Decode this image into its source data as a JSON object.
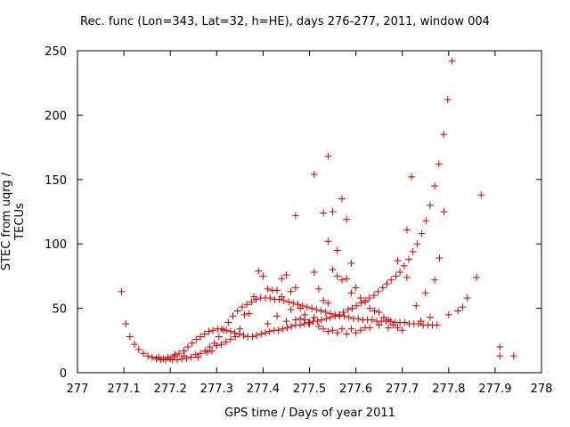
{
  "chart_data": {
    "type": "scatter",
    "title": "Rec. func (Lon=343, Lat=32, h=HE), days 276-277, 2011, window 004",
    "xlabel": "GPS time / Days of year 2011",
    "ylabel": "STEC from uqrg / TECUs",
    "xlim": [
      277,
      278
    ],
    "ylim": [
      0,
      250
    ],
    "x_ticks": [
      "277",
      "277.1",
      "277.2",
      "277.3",
      "277.4",
      "277.5",
      "277.6",
      "277.7",
      "277.8",
      "277.9",
      "278"
    ],
    "y_ticks": [
      "0",
      "50",
      "100",
      "150",
      "200",
      "250"
    ],
    "grid": false,
    "legend": "none",
    "marker": "+",
    "color": "#cc0000",
    "series": [
      {
        "points": [
          [
            277.095,
            63
          ],
          [
            277.104,
            38
          ],
          [
            277.113,
            28
          ],
          [
            277.123,
            22
          ],
          [
            277.132,
            18
          ],
          [
            277.142,
            15
          ],
          [
            277.152,
            13
          ],
          [
            277.161,
            12
          ],
          [
            277.17,
            11
          ],
          [
            277.18,
            10
          ],
          [
            277.19,
            10
          ],
          [
            277.2,
            11
          ],
          [
            277.209,
            13
          ],
          [
            277.219,
            15
          ],
          [
            277.229,
            17
          ],
          [
            277.238,
            20
          ],
          [
            277.247,
            23
          ],
          [
            277.256,
            26
          ],
          [
            277.265,
            28
          ],
          [
            277.274,
            30
          ],
          [
            277.283,
            32
          ],
          [
            277.292,
            33
          ],
          [
            277.302,
            34
          ],
          [
            277.311,
            34
          ],
          [
            277.321,
            33
          ],
          [
            277.33,
            32
          ],
          [
            277.339,
            31
          ],
          [
            277.349,
            30
          ],
          [
            277.358,
            29
          ],
          [
            277.367,
            28
          ],
          [
            277.377,
            28
          ],
          [
            277.386,
            29
          ],
          [
            277.396,
            30
          ],
          [
            277.405,
            31
          ],
          [
            277.414,
            32
          ],
          [
            277.424,
            33
          ],
          [
            277.433,
            33
          ],
          [
            277.442,
            34
          ],
          [
            277.452,
            35
          ],
          [
            277.461,
            36
          ],
          [
            277.47,
            37
          ],
          [
            277.48,
            37
          ],
          [
            277.489,
            38
          ],
          [
            277.498,
            39
          ],
          [
            277.508,
            40
          ],
          [
            277.517,
            40
          ],
          [
            277.526,
            41
          ],
          [
            277.536,
            42
          ],
          [
            277.545,
            43
          ],
          [
            277.555,
            44
          ],
          [
            277.564,
            45
          ],
          [
            277.573,
            47
          ],
          [
            277.583,
            49
          ],
          [
            277.592,
            50
          ],
          [
            277.601,
            52
          ],
          [
            277.611,
            54
          ],
          [
            277.62,
            56
          ],
          [
            277.629,
            58
          ],
          [
            277.639,
            60
          ],
          [
            277.648,
            63
          ],
          [
            277.658,
            66
          ],
          [
            277.667,
            69
          ],
          [
            277.676,
            72
          ],
          [
            277.686,
            75
          ],
          [
            277.695,
            78
          ],
          [
            277.704,
            83
          ],
          [
            277.714,
            88
          ],
          [
            277.723,
            94
          ],
          [
            277.732,
            100
          ],
          [
            277.742,
            108
          ],
          [
            277.751,
            118
          ],
          [
            277.76,
            130
          ],
          [
            277.77,
            145
          ],
          [
            277.779,
            162
          ],
          [
            277.789,
            185
          ],
          [
            277.798,
            212
          ],
          [
            277.807,
            242
          ],
          [
            277.17,
            11
          ],
          [
            277.175,
            12
          ],
          [
            277.185,
            11
          ],
          [
            277.195,
            12
          ],
          [
            277.205,
            10
          ],
          [
            277.215,
            10
          ],
          [
            277.225,
            11
          ],
          [
            277.235,
            11
          ],
          [
            277.245,
            12
          ],
          [
            277.255,
            14
          ],
          [
            277.265,
            15
          ],
          [
            277.275,
            17
          ],
          [
            277.285,
            20
          ],
          [
            277.295,
            23
          ],
          [
            277.305,
            28
          ],
          [
            277.315,
            33
          ],
          [
            277.325,
            39
          ],
          [
            277.335,
            44
          ],
          [
            277.345,
            48
          ],
          [
            277.355,
            51
          ],
          [
            277.365,
            53
          ],
          [
            277.375,
            55
          ],
          [
            277.385,
            57
          ],
          [
            277.395,
            58
          ],
          [
            277.405,
            58
          ],
          [
            277.415,
            58
          ],
          [
            277.425,
            57
          ],
          [
            277.435,
            57
          ],
          [
            277.445,
            56
          ],
          [
            277.455,
            55
          ],
          [
            277.465,
            54
          ],
          [
            277.475,
            53
          ],
          [
            277.485,
            52
          ],
          [
            277.495,
            51
          ],
          [
            277.505,
            50
          ],
          [
            277.515,
            49
          ],
          [
            277.525,
            48
          ],
          [
            277.535,
            47
          ],
          [
            277.545,
            46
          ],
          [
            277.555,
            45
          ],
          [
            277.565,
            44
          ],
          [
            277.575,
            44
          ],
          [
            277.585,
            43
          ],
          [
            277.595,
            42
          ],
          [
            277.605,
            42
          ],
          [
            277.615,
            41
          ],
          [
            277.625,
            41
          ],
          [
            277.635,
            41
          ],
          [
            277.645,
            40
          ],
          [
            277.655,
            40
          ],
          [
            277.665,
            40
          ],
          [
            277.675,
            40
          ],
          [
            277.685,
            39
          ],
          [
            277.695,
            39
          ],
          [
            277.705,
            39
          ],
          [
            277.715,
            38
          ],
          [
            277.725,
            38
          ],
          [
            277.735,
            38
          ],
          [
            277.745,
            37
          ],
          [
            277.755,
            37
          ],
          [
            277.765,
            37
          ],
          [
            277.775,
            37
          ],
          [
            277.21,
            14
          ],
          [
            277.23,
            13
          ],
          [
            277.26,
            12
          ],
          [
            277.28,
            16
          ],
          [
            277.29,
            17
          ],
          [
            277.3,
            21
          ],
          [
            277.31,
            22
          ],
          [
            277.32,
            24
          ],
          [
            277.33,
            26
          ],
          [
            277.34,
            28
          ],
          [
            277.35,
            34
          ],
          [
            277.36,
            45
          ],
          [
            277.37,
            46
          ],
          [
            277.38,
            59
          ],
          [
            277.39,
            79
          ],
          [
            277.4,
            75
          ],
          [
            277.41,
            65
          ],
          [
            277.42,
            64
          ],
          [
            277.43,
            64
          ],
          [
            277.44,
            73
          ],
          [
            277.45,
            76
          ],
          [
            277.46,
            63
          ],
          [
            277.47,
            66
          ],
          [
            277.48,
            50
          ],
          [
            277.49,
            45
          ],
          [
            277.5,
            38
          ],
          [
            277.51,
            78
          ],
          [
            277.52,
            65
          ],
          [
            277.53,
            56
          ],
          [
            277.54,
            54
          ],
          [
            277.55,
            80
          ],
          [
            277.56,
            75
          ],
          [
            277.57,
            72
          ],
          [
            277.58,
            73
          ],
          [
            277.59,
            62
          ],
          [
            277.6,
            66
          ],
          [
            277.61,
            58
          ],
          [
            277.62,
            55
          ],
          [
            277.63,
            50
          ],
          [
            277.64,
            48
          ],
          [
            277.65,
            47
          ],
          [
            277.66,
            43
          ],
          [
            277.67,
            41
          ],
          [
            277.68,
            37
          ],
          [
            277.69,
            35
          ],
          [
            277.7,
            33
          ],
          [
            277.41,
            38
          ],
          [
            277.43,
            44
          ],
          [
            277.45,
            40
          ],
          [
            277.47,
            41
          ],
          [
            277.49,
            41
          ],
          [
            277.51,
            43
          ],
          [
            277.53,
            34
          ],
          [
            277.55,
            33
          ],
          [
            277.57,
            34
          ],
          [
            277.59,
            34
          ],
          [
            277.61,
            33
          ],
          [
            277.63,
            35
          ],
          [
            277.65,
            37
          ],
          [
            277.67,
            35
          ],
          [
            277.44,
            59
          ],
          [
            277.46,
            49
          ],
          [
            277.48,
            42
          ],
          [
            277.5,
            39
          ],
          [
            277.52,
            36
          ],
          [
            277.54,
            32
          ],
          [
            277.56,
            31
          ],
          [
            277.58,
            30
          ],
          [
            277.6,
            31
          ],
          [
            277.62,
            35
          ],
          [
            277.47,
            122
          ],
          [
            277.51,
            154
          ],
          [
            277.53,
            124
          ],
          [
            277.54,
            102
          ],
          [
            277.54,
            168
          ],
          [
            277.55,
            125
          ],
          [
            277.57,
            135
          ],
          [
            277.58,
            119
          ],
          [
            277.56,
            95
          ],
          [
            277.59,
            85
          ],
          [
            277.71,
            111
          ],
          [
            277.72,
            152
          ],
          [
            277.79,
            125
          ],
          [
            277.87,
            138
          ],
          [
            277.69,
            87
          ],
          [
            277.78,
            89
          ],
          [
            277.75,
            62
          ],
          [
            277.77,
            72
          ],
          [
            277.73,
            52
          ],
          [
            277.71,
            74
          ],
          [
            277.84,
            58
          ],
          [
            277.86,
            74
          ],
          [
            277.91,
            20
          ],
          [
            277.91,
            13
          ],
          [
            277.94,
            13
          ],
          [
            277.8,
            45
          ],
          [
            277.82,
            48
          ],
          [
            277.83,
            51
          ],
          [
            277.76,
            43
          ],
          [
            277.74,
            40
          ]
        ]
      }
    ]
  }
}
